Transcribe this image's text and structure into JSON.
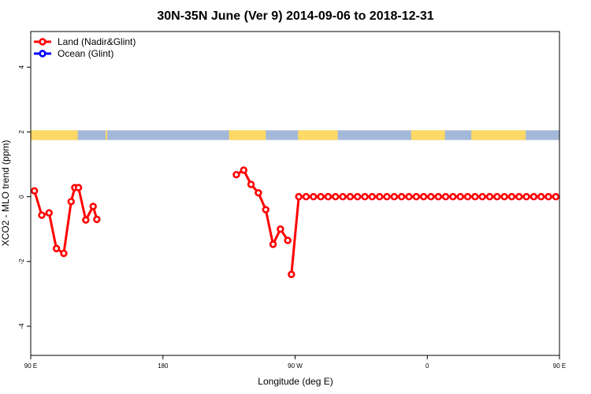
{
  "chart_data": {
    "type": "line",
    "title": "30N-35N June (Ver 9)   2014-09-06 to 2018-12-31",
    "xlabel": "Longitude (deg E)",
    "ylabel": "XCO2 - MLO trend (ppm)",
    "xlim": [
      90,
      450
    ],
    "ylim": [
      -4.9,
      5.1
    ],
    "x_ticks": [
      {
        "value": 90,
        "label": "90 E"
      },
      {
        "value": 180,
        "label": "180"
      },
      {
        "value": 270,
        "label": "90 W"
      },
      {
        "value": 360,
        "label": "0"
      },
      {
        "value": 450,
        "label": "90 E"
      },
      {
        "value": 540,
        "label": "180"
      }
    ],
    "y_ticks": [
      -4,
      -2,
      0,
      2,
      4
    ],
    "legend_position": "top-left",
    "land_ocean_band": {
      "y_range": [
        1.75,
        2.05
      ],
      "land_color": "#FFD966",
      "ocean_color": "#A4B9D9",
      "land_longitude_ranges": [
        [
          90,
          122
        ],
        [
          141,
          142
        ],
        [
          225,
          250
        ],
        [
          272,
          299
        ],
        [
          349,
          372
        ],
        [
          390,
          427
        ],
        [
          494,
          511
        ],
        [
          532,
          534
        ]
      ]
    },
    "series": [
      {
        "name": "Land (Nadir&Glint)",
        "color": "#FF0000",
        "segments": [
          {
            "x": [
              92.5,
              97.5,
              102.5,
              107.5,
              112.5,
              117.5,
              120,
              122.5,
              127.5,
              132.5,
              135
            ],
            "y": [
              0.18,
              -0.57,
              -0.5,
              -1.6,
              -1.75,
              -0.15,
              0.28,
              0.28,
              -0.72,
              -0.3,
              -0.7
            ]
          },
          {
            "x": [
              230,
              235,
              240,
              245,
              250,
              255,
              260,
              265
            ],
            "y": [
              0.68,
              0.82,
              0.38,
              0.12,
              -0.4,
              -1.47,
              -1.0,
              -1.35
            ]
          },
          {
            "x": [
              267.5,
              272.5,
              277.5,
              282.5,
              287.5,
              292.5,
              297.5,
              302.5,
              307.5,
              312.5,
              317.5,
              322.5,
              327.5,
              332.5,
              337.5,
              342.5,
              347.5,
              352.5,
              357.5,
              362.5,
              367.5,
              372.5,
              377.5,
              382.5,
              387.5,
              392.5,
              397.5,
              402.5,
              407.5,
              412.5,
              417.5,
              422.5,
              427.5,
              432.5,
              437.5,
              442.5,
              447.5
            ],
            "y": [
              -2.4,
              0.0,
              0.0,
              0.0,
              0.0,
              0.0,
              0.0,
              0.0,
              0.0,
              0.0,
              0.0,
              0.0,
              0.0,
              0.0,
              0.0,
              0.0,
              0.0,
              0.0,
              0.0,
              0.0,
              0.0,
              0.0,
              0.0,
              0.0,
              0.0,
              0.0,
              0.0,
              0.0,
              0.0,
              0.0,
              0.0,
              0.0,
              0.0,
              0.0,
              0.0,
              0.0,
              0.0
            ]
          }
        ]
      },
      {
        "name": "Ocean (Glint)",
        "color": "#0000FF",
        "segments": []
      }
    ]
  }
}
